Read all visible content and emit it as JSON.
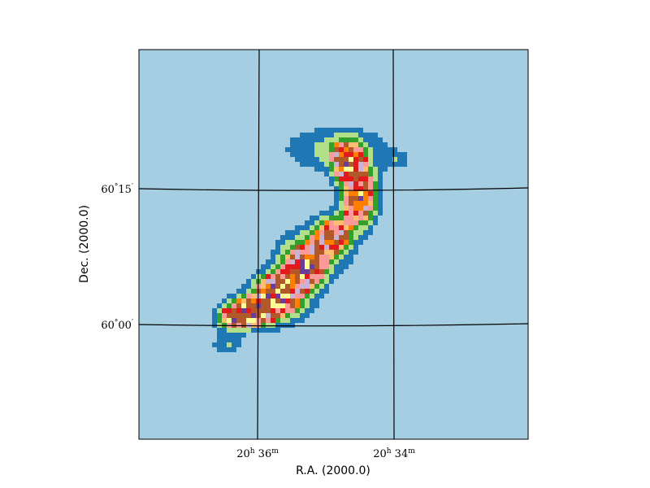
{
  "chart_data": {
    "type": "heatmap",
    "title": "",
    "xlabel": "R.A. (2000.0)",
    "ylabel": "Dec. (2000.0)",
    "x_ticks": [
      {
        "pre": "20",
        "h": "h",
        "mid": " 36",
        "m": "m"
      },
      {
        "pre": "20",
        "h": "h",
        "mid": " 34",
        "m": "m"
      }
    ],
    "y_ticks": [
      {
        "pre": "60",
        "deg": "°",
        "mid": "15",
        "arc": "′"
      },
      {
        "pre": "60",
        "deg": "°",
        "mid": "00",
        "arc": "′"
      }
    ],
    "ra_minutes_range": [
      37.6,
      32.3
    ],
    "dec_arcmin_range": [
      -13,
      30
    ],
    "grid": true,
    "colormap": [
      "#a6cee3",
      "#1f78b4",
      "#b2df8a",
      "#33a02c",
      "#fb9a99",
      "#e31a1c",
      "#fdbf6f",
      "#ff7f00",
      "#cab2d6",
      "#6a3d9a",
      "#ffff99",
      "#b15928"
    ],
    "background_color": "#a6cee3",
    "blobs": [
      {
        "ra": 34.75,
        "dec": 17.6,
        "sra": 0.13,
        "sdec": 1.3,
        "amp": 1.0
      },
      {
        "ra": 34.6,
        "dec": 13.8,
        "sra": 0.16,
        "sdec": 2.0,
        "amp": 0.95
      },
      {
        "ra": 34.95,
        "dec": 9.5,
        "sra": 0.16,
        "sdec": 1.3,
        "amp": 0.7
      },
      {
        "ra": 35.35,
        "dec": 6.0,
        "sra": 0.18,
        "sdec": 1.5,
        "amp": 0.95
      },
      {
        "ra": 35.7,
        "dec": 3.2,
        "sra": 0.2,
        "sdec": 1.4,
        "amp": 1.0
      },
      {
        "ra": 36.05,
        "dec": 1.2,
        "sra": 0.2,
        "sdec": 0.9,
        "amp": 0.95
      },
      {
        "ra": 36.25,
        "dec": 0.3,
        "sra": 0.16,
        "sdec": 0.7,
        "amp": 0.9
      },
      {
        "ra": 34.9,
        "dec": 19.0,
        "sra": 0.5,
        "sdec": 1.8,
        "amp": 0.25
      },
      {
        "ra": 36.4,
        "dec": -2.5,
        "sra": 0.15,
        "sdec": 0.9,
        "amp": 0.2
      },
      {
        "ra": 35.2,
        "dec": 7.8,
        "sra": 0.35,
        "sdec": 2.2,
        "amp": 0.25
      },
      {
        "ra": 35.8,
        "dec": 1.5,
        "sra": 0.45,
        "sdec": 1.8,
        "amp": 0.2
      },
      {
        "ra": 34.1,
        "dec": 17.8,
        "sra": 0.12,
        "sdec": 0.7,
        "amp": 0.15
      },
      {
        "ra": 33.4,
        "dec": 12.5,
        "sra": 0.08,
        "sdec": 0.5,
        "amp": 0.1
      }
    ]
  }
}
